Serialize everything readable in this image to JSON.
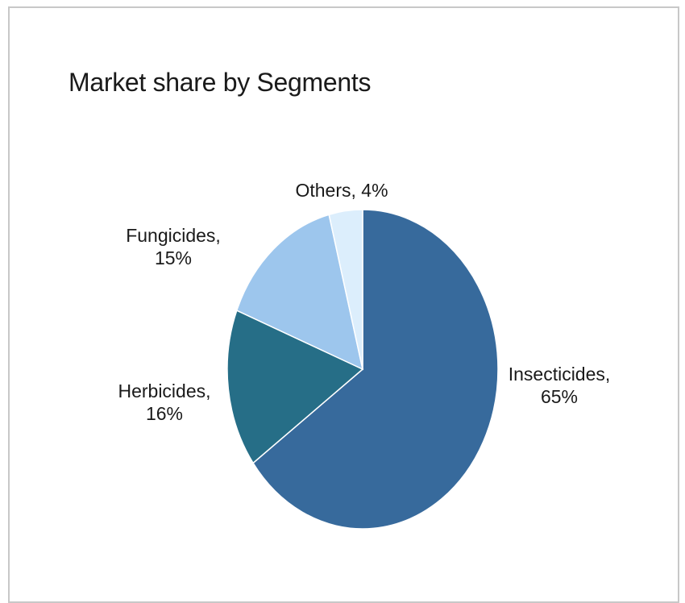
{
  "chart_data": {
    "type": "pie",
    "title": "Market share by Segments",
    "slices": [
      {
        "label": "Insecticides",
        "value": 65,
        "display_label": [
          "Insecticides,",
          "65%"
        ],
        "color": "#376a9c"
      },
      {
        "label": "Herbicides",
        "value": 16,
        "display_label": [
          "Herbicides,",
          "16%"
        ],
        "color": "#266e87"
      },
      {
        "label": "Fungicides",
        "value": 15,
        "display_label": [
          "Fungicides,",
          "15%"
        ],
        "color": "#9dc6ed"
      },
      {
        "label": "Others",
        "value": 4,
        "display_label": [
          "Others, 4%"
        ],
        "color": "#dceefc"
      }
    ],
    "legend": "none"
  }
}
